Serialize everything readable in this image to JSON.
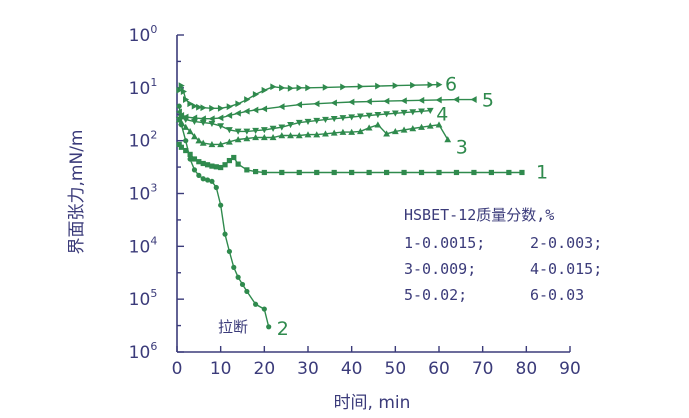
{
  "chart_data": {
    "type": "scatter",
    "ylabel": "界面张力,mN/m",
    "xlabel": "时间, min",
    "x_ticks": [
      0,
      10,
      20,
      30,
      40,
      50,
      60,
      70,
      80,
      90
    ],
    "xlim": [
      0,
      90
    ],
    "y_scale": "log",
    "ylim": [
      1e-06,
      1
    ],
    "y_tick_labels": [
      {
        "base": "10",
        "exp": "0"
      },
      {
        "base": "10",
        "exp": "1"
      },
      {
        "base": "10",
        "exp": "2"
      },
      {
        "base": "10",
        "exp": "3"
      },
      {
        "base": "10",
        "exp": "4"
      },
      {
        "base": "10",
        "exp": "5"
      },
      {
        "base": "10",
        "exp": "6"
      }
    ],
    "legend": {
      "title": "HSBET-12质量分数,%",
      "entries": [
        "1-0.0015;",
        "2-0.003;",
        "3-0.009;",
        "4-0.015;",
        "5-0.02;",
        "6-0.03"
      ]
    },
    "annotation": "拉断",
    "colors": {
      "axis": "#3b3b7a",
      "series": "#2f8a4d"
    },
    "series": [
      {
        "name": "1",
        "marker": "square",
        "x": [
          0.5,
          1,
          2,
          3,
          4,
          5,
          6,
          7,
          8,
          9,
          10,
          11,
          12,
          13,
          14,
          16,
          18,
          20,
          24,
          28,
          32,
          36,
          40,
          44,
          48,
          52,
          56,
          60,
          64,
          68,
          72,
          76,
          79
        ],
        "y": [
          0.0085,
          0.0075,
          0.0065,
          0.0055,
          0.0045,
          0.004,
          0.0037,
          0.0035,
          0.0033,
          0.0032,
          0.0031,
          0.0035,
          0.0042,
          0.0048,
          0.0036,
          0.0028,
          0.0026,
          0.0025,
          0.0025,
          0.0025,
          0.0025,
          0.0025,
          0.0025,
          0.0025,
          0.0025,
          0.0025,
          0.0025,
          0.0025,
          0.0025,
          0.0025,
          0.0025,
          0.0025,
          0.0025
        ]
      },
      {
        "name": "2",
        "marker": "circle",
        "x": [
          0.5,
          1,
          2,
          3,
          4,
          5,
          6,
          7,
          8,
          9,
          10,
          11,
          12,
          13,
          14,
          15,
          16,
          18,
          20,
          21
        ],
        "y": [
          0.045,
          0.02,
          0.01,
          0.0045,
          0.0028,
          0.0022,
          0.0019,
          0.0018,
          0.0017,
          0.0013,
          0.0006,
          0.00017,
          8e-05,
          4e-05,
          2.6e-05,
          1.9e-05,
          1.4e-05,
          8e-06,
          6.5e-06,
          3e-06
        ]
      },
      {
        "name": "3",
        "marker": "triangle-up",
        "x": [
          0.5,
          1,
          2,
          3,
          4,
          5,
          6,
          8,
          10,
          12,
          14,
          16,
          18,
          20,
          22,
          24,
          26,
          28,
          30,
          32,
          34,
          36,
          38,
          40,
          42,
          44,
          46,
          48,
          50,
          52,
          54,
          56,
          58,
          60,
          62
        ],
        "y": [
          0.025,
          0.022,
          0.018,
          0.015,
          0.012,
          0.01,
          0.009,
          0.0085,
          0.0085,
          0.0095,
          0.0105,
          0.011,
          0.0115,
          0.0115,
          0.0115,
          0.0125,
          0.0125,
          0.0125,
          0.013,
          0.013,
          0.0135,
          0.014,
          0.0145,
          0.0145,
          0.015,
          0.0175,
          0.02,
          0.0135,
          0.015,
          0.016,
          0.017,
          0.018,
          0.019,
          0.02,
          0.0105
        ]
      },
      {
        "name": "4",
        "marker": "triangle-down",
        "x": [
          0.5,
          1,
          2,
          4,
          6,
          8,
          10,
          12,
          14,
          16,
          18,
          20,
          22,
          24,
          26,
          28,
          30,
          32,
          34,
          36,
          38,
          40,
          42,
          44,
          46,
          48,
          50,
          52,
          54,
          56,
          58
        ],
        "y": [
          0.025,
          0.027,
          0.025,
          0.023,
          0.022,
          0.021,
          0.019,
          0.016,
          0.015,
          0.015,
          0.0155,
          0.016,
          0.017,
          0.018,
          0.02,
          0.022,
          0.023,
          0.024,
          0.025,
          0.026,
          0.027,
          0.028,
          0.029,
          0.03,
          0.031,
          0.032,
          0.033,
          0.034,
          0.035,
          0.036,
          0.037
        ]
      },
      {
        "name": "5",
        "marker": "triangle-left",
        "x": [
          0.5,
          1,
          2,
          4,
          6,
          8,
          10,
          12,
          14,
          16,
          18,
          20,
          24,
          28,
          32,
          36,
          40,
          44,
          48,
          52,
          56,
          60,
          64,
          68
        ],
        "y": [
          0.035,
          0.03,
          0.028,
          0.027,
          0.026,
          0.026,
          0.027,
          0.03,
          0.033,
          0.036,
          0.038,
          0.04,
          0.044,
          0.048,
          0.05,
          0.052,
          0.054,
          0.055,
          0.056,
          0.057,
          0.058,
          0.059,
          0.06,
          0.06
        ]
      },
      {
        "name": "6",
        "marker": "triangle-right",
        "x": [
          0.5,
          1,
          1.5,
          2,
          3,
          4,
          5,
          6,
          8,
          10,
          12,
          14,
          16,
          18,
          20,
          22,
          24,
          26,
          28,
          30,
          34,
          38,
          42,
          46,
          50,
          54,
          58,
          60
        ],
        "y": [
          0.09,
          0.11,
          0.085,
          0.06,
          0.05,
          0.045,
          0.043,
          0.042,
          0.041,
          0.041,
          0.044,
          0.05,
          0.06,
          0.075,
          0.09,
          0.105,
          0.1,
          0.098,
          0.1,
          0.1,
          0.102,
          0.104,
          0.106,
          0.108,
          0.11,
          0.112,
          0.114,
          0.115
        ]
      }
    ]
  }
}
